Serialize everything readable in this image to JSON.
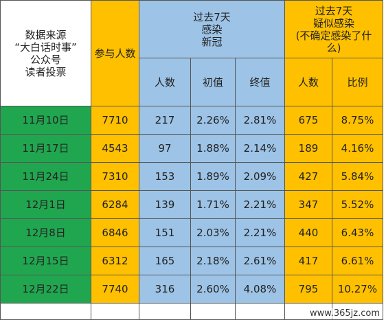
{
  "header": {
    "source": [
      "数据来源",
      "“大白话时事”",
      "公众号",
      "读者投票"
    ],
    "participants": "参与人数",
    "infected": {
      "title": [
        "过去7天",
        "感染",
        "新冠"
      ],
      "columns": [
        "人数",
        "初值",
        "终值"
      ]
    },
    "suspected": {
      "title": [
        "过去7天",
        "疑似感染",
        "(不确定感染了什",
        "么)"
      ],
      "columns": [
        "人数",
        "比例"
      ]
    }
  },
  "rows": [
    [
      "11月10日",
      "7710",
      "217",
      "2.26%",
      "2.81%",
      "675",
      "8.75%"
    ],
    [
      "11月17日",
      "4543",
      "97",
      "1.88%",
      "2.14%",
      "189",
      "4.16%"
    ],
    [
      "11月24日",
      "7310",
      "153",
      "1.89%",
      "2.09%",
      "427",
      "5.84%"
    ],
    [
      "12月1日",
      "6284",
      "139",
      "1.71%",
      "2.21%",
      "347",
      "5.52%"
    ],
    [
      "12月8日",
      "6846",
      "151",
      "2.03%",
      "2.21%",
      "440",
      "6.43%"
    ],
    [
      "12月15日",
      "6312",
      "165",
      "2.18%",
      "2.61%",
      "417",
      "6.61%"
    ],
    [
      "12月22日",
      "7740",
      "316",
      "2.60%",
      "4.08%",
      "795",
      "10.27%"
    ]
  ],
  "watermark": "www.365jz.com"
}
